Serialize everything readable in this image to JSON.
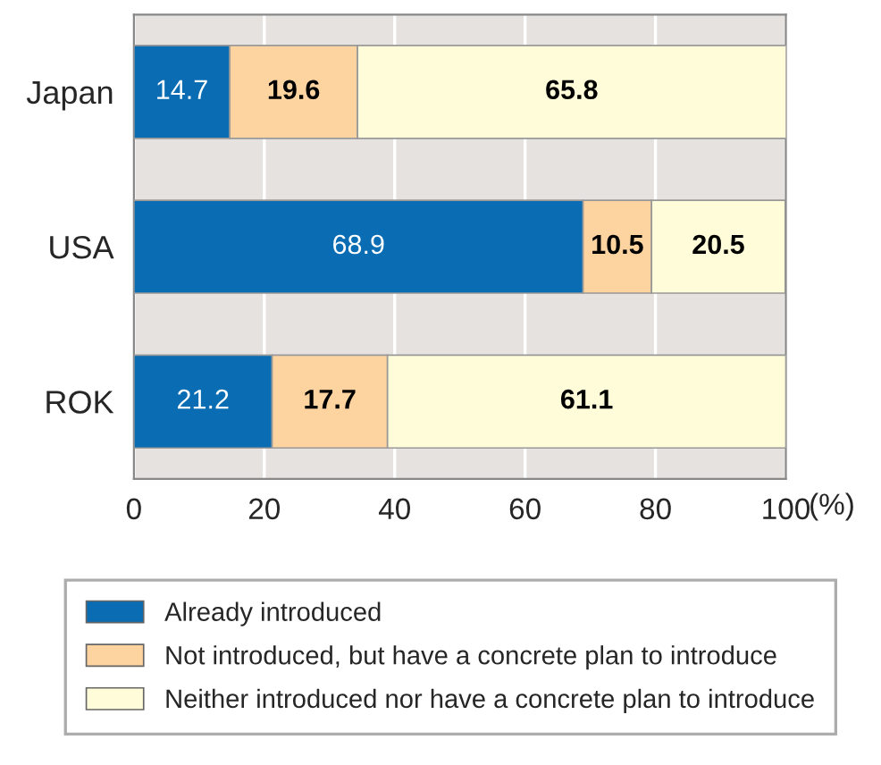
{
  "chart_data": {
    "type": "bar",
    "orientation": "horizontal",
    "stacked": true,
    "categories": [
      "Japan",
      "USA",
      "ROK"
    ],
    "series": [
      {
        "name": "Already introduced",
        "color": "#0a6db3",
        "values": [
          14.7,
          68.9,
          21.2
        ]
      },
      {
        "name": "Not introduced, but have a concrete plan to introduce",
        "color": "#fdd3a0",
        "values": [
          19.6,
          10.5,
          17.7
        ]
      },
      {
        "name": "Neither introduced nor have a concrete plan to introduce",
        "color": "#fffcd9",
        "values": [
          65.8,
          20.5,
          61.1
        ]
      }
    ],
    "xlabel": "(%)",
    "xlim": [
      0,
      100
    ],
    "xticks": [
      0,
      20,
      40,
      60,
      80,
      100
    ],
    "grid": "x",
    "legend": "bottom",
    "data_labels": true
  }
}
